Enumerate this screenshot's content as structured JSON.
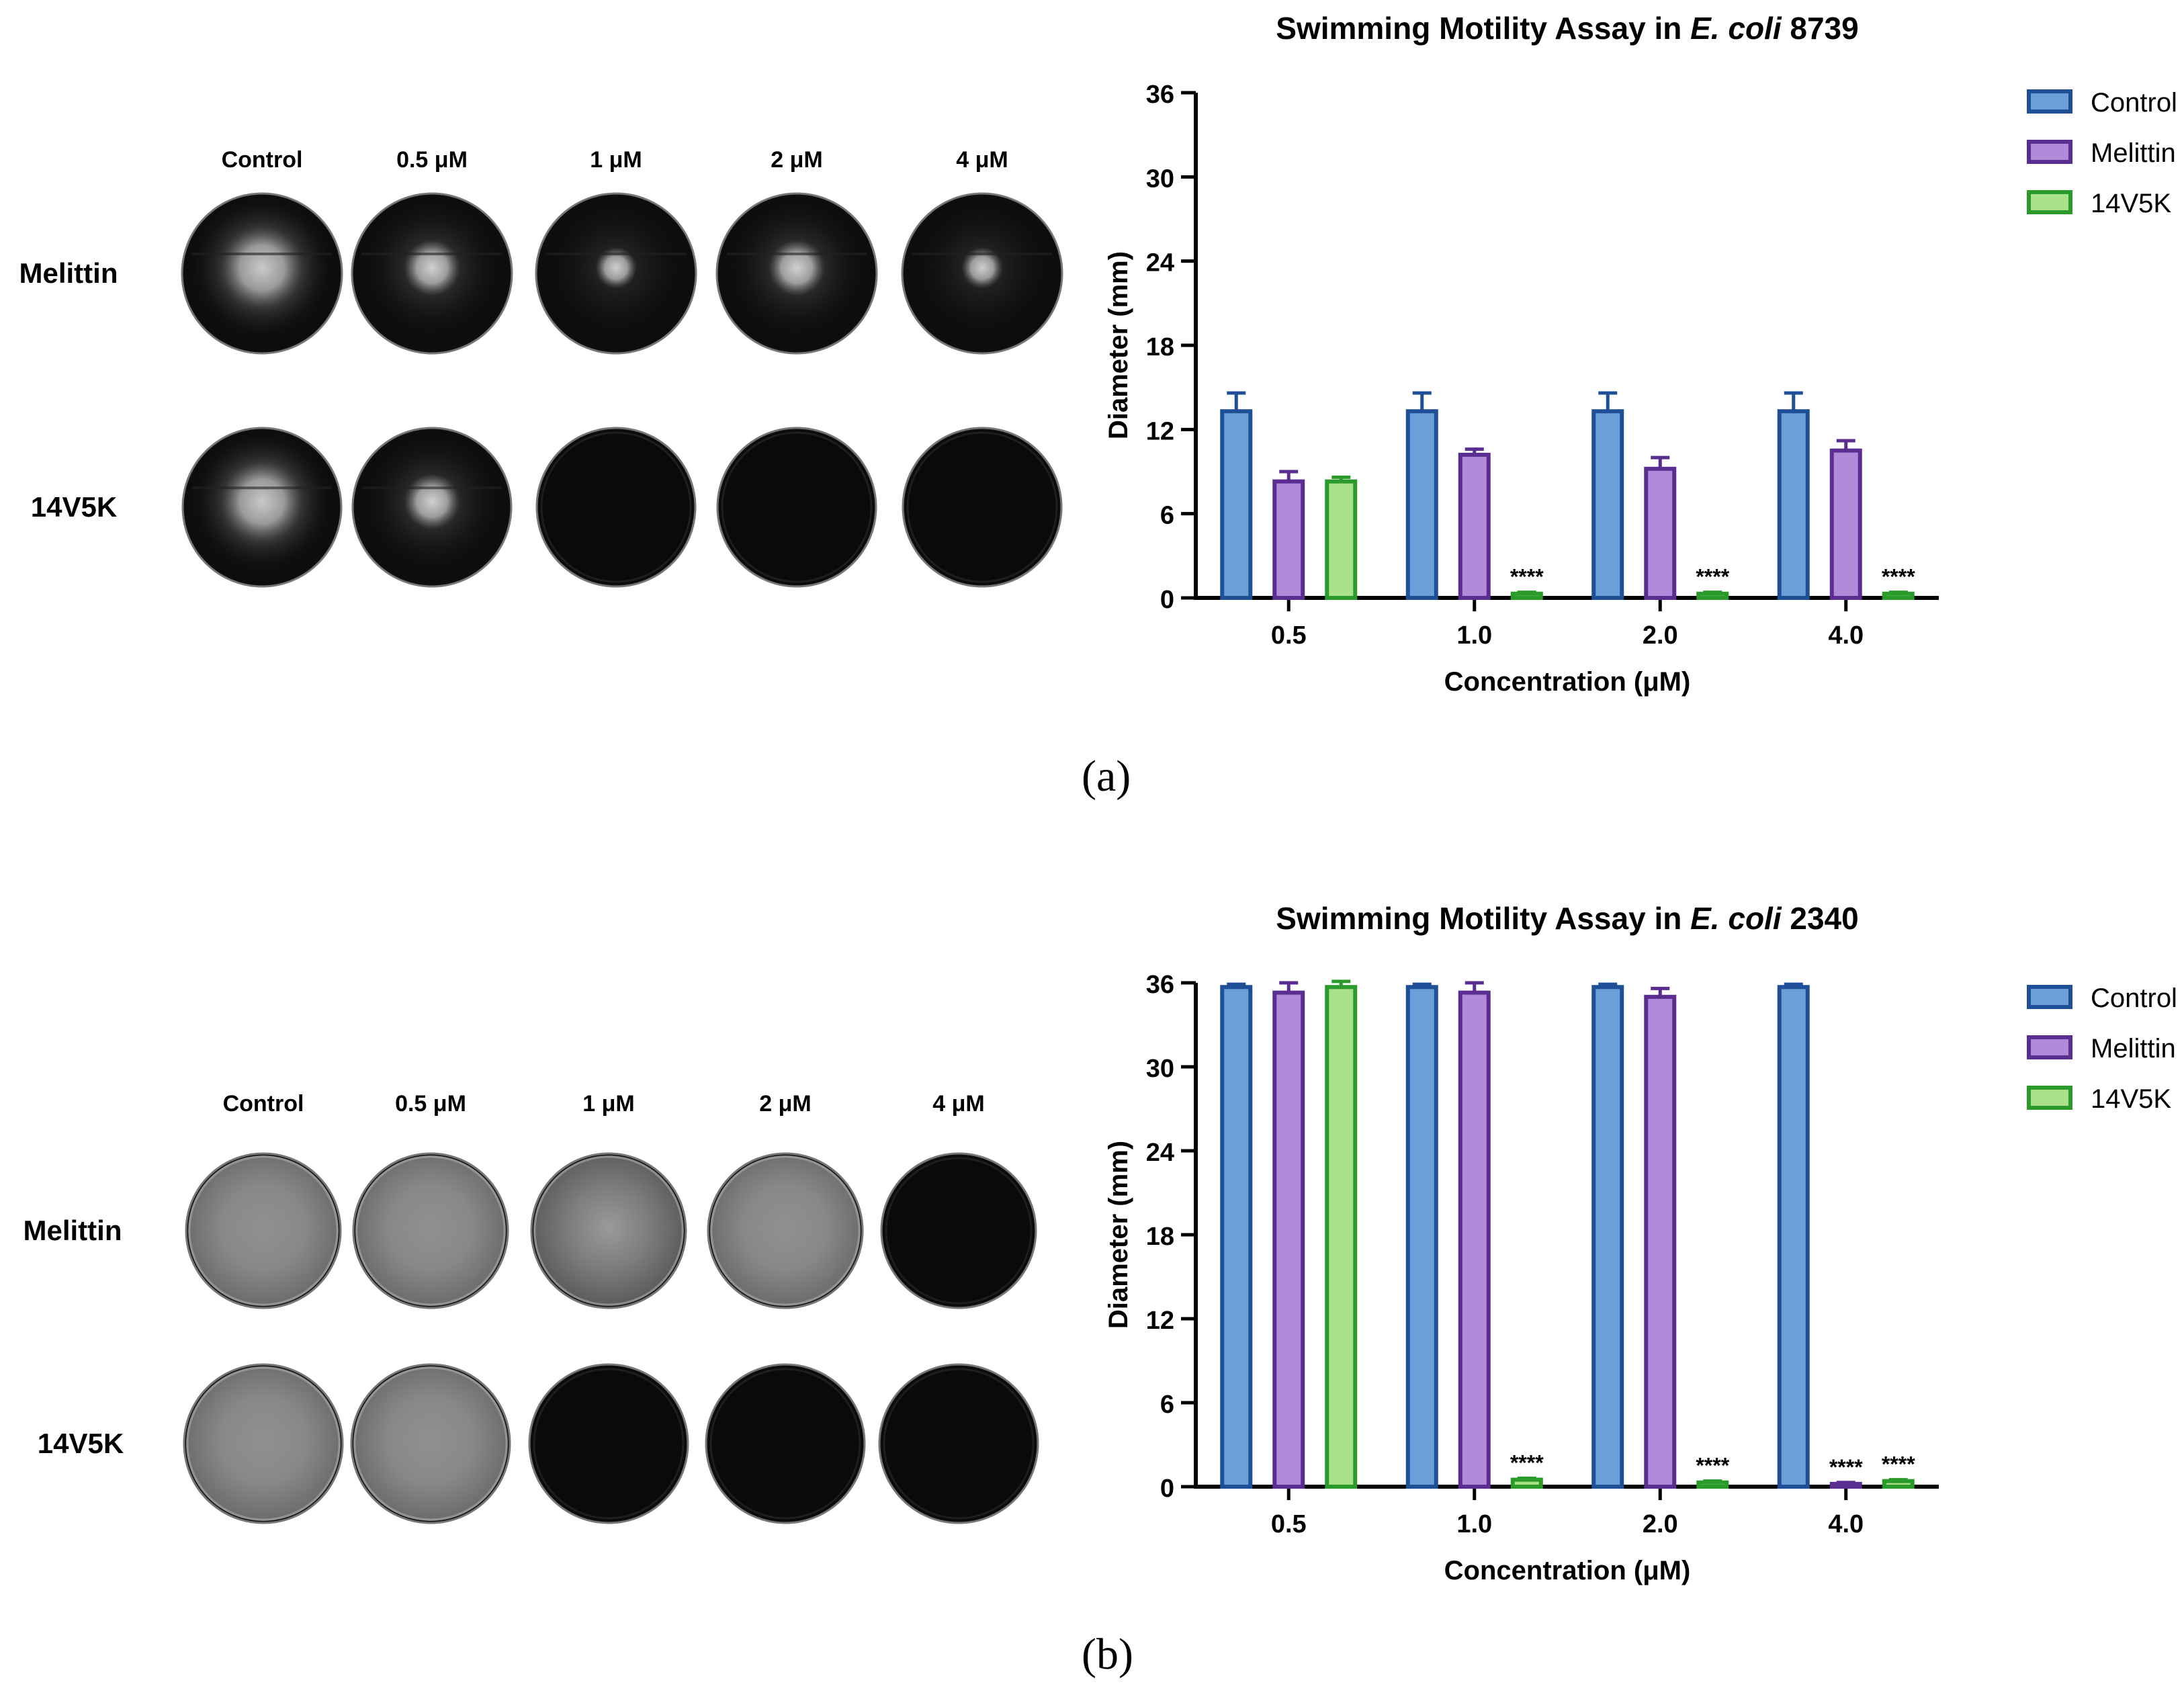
{
  "panels": [
    {
      "letter": "(a)",
      "plate_columns": [
        "Control",
        "0.5 μM",
        "1 μM",
        "2 μM",
        "4 μM"
      ],
      "plate_rows": [
        {
          "label": "Melittin",
          "plates": [
            "swim-large",
            "swim-medium",
            "swim-small",
            "swim-medium",
            "swim-small"
          ]
        },
        {
          "label": "14V5K",
          "plates": [
            "swim-large",
            "swim-medium",
            "none",
            "none",
            "none"
          ]
        }
      ],
      "chart_data": {
        "type": "bar",
        "title": "Swimming Motility Assay in",
        "title_italic": "E. coli",
        "title_strain": "8739",
        "xlabel": "Concentration (μM)",
        "ylabel": "Diameter (mm)",
        "ylim": [
          0,
          36
        ],
        "yticks": [
          0,
          6,
          12,
          18,
          24,
          30,
          36
        ],
        "categories": [
          "0.5",
          "1.0",
          "2.0",
          "4.0"
        ],
        "series": [
          {
            "name": "Control",
            "fill": "#6a9fd8",
            "stroke": "#1f4f96",
            "values": [
              13.3,
              13.3,
              13.3,
              13.3
            ],
            "errors": [
              1.3,
              1.3,
              1.3,
              1.3
            ]
          },
          {
            "name": "Melittin",
            "fill": "#b18ad9",
            "stroke": "#5a2d91",
            "values": [
              8.3,
              10.2,
              9.2,
              10.5
            ],
            "errors": [
              0.7,
              0.4,
              0.8,
              0.7
            ]
          },
          {
            "name": "14V5K",
            "fill": "#a9e08a",
            "stroke": "#2a9a2a",
            "values": [
              8.3,
              0.3,
              0.3,
              0.3
            ],
            "errors": [
              0.3,
              0.1,
              0.1,
              0.1
            ]
          }
        ],
        "significance": [
          {
            "category": 1,
            "series": 2,
            "label": "****"
          },
          {
            "category": 2,
            "series": 2,
            "label": "****"
          },
          {
            "category": 3,
            "series": 2,
            "label": "****"
          }
        ],
        "legend": "top-right"
      }
    },
    {
      "letter": "(b)",
      "plate_columns": [
        "Control",
        "0.5 μM",
        "1 μM",
        "2 μM",
        "4 μM"
      ],
      "plate_rows": [
        {
          "label": "Melittin",
          "plates": [
            "full-gray",
            "full-gray",
            "full-textured",
            "full-gray",
            "none"
          ]
        },
        {
          "label": "14V5K",
          "plates": [
            "full-gray",
            "full-gray",
            "none",
            "none",
            "none"
          ]
        }
      ],
      "chart_data": {
        "type": "bar",
        "title": "Swimming Motility Assay in",
        "title_italic": "E. coli",
        "title_strain": "2340",
        "xlabel": "Concentration (μM)",
        "ylabel": "Diameter (mm)",
        "ylim": [
          0,
          36
        ],
        "yticks": [
          0,
          6,
          12,
          18,
          24,
          30,
          36
        ],
        "categories": [
          "0.5",
          "1.0",
          "2.0",
          "4.0"
        ],
        "series": [
          {
            "name": "Control",
            "fill": "#6a9fd8",
            "stroke": "#1f4f96",
            "values": [
              35.7,
              35.7,
              35.7,
              35.7
            ],
            "errors": [
              0.2,
              0.2,
              0.2,
              0.2
            ]
          },
          {
            "name": "Melittin",
            "fill": "#b18ad9",
            "stroke": "#5a2d91",
            "values": [
              35.3,
              35.3,
              35.0,
              0.2
            ],
            "errors": [
              0.7,
              0.7,
              0.6,
              0.1
            ]
          },
          {
            "name": "14V5K",
            "fill": "#a9e08a",
            "stroke": "#2a9a2a",
            "values": [
              35.7,
              0.5,
              0.3,
              0.4
            ],
            "errors": [
              0.4,
              0.1,
              0.1,
              0.1
            ]
          }
        ],
        "significance": [
          {
            "category": 1,
            "series": 2,
            "label": "****"
          },
          {
            "category": 2,
            "series": 2,
            "label": "****"
          },
          {
            "category": 3,
            "series": 1,
            "label": "****"
          },
          {
            "category": 3,
            "series": 2,
            "label": "****"
          }
        ],
        "legend": "top-right"
      }
    }
  ]
}
